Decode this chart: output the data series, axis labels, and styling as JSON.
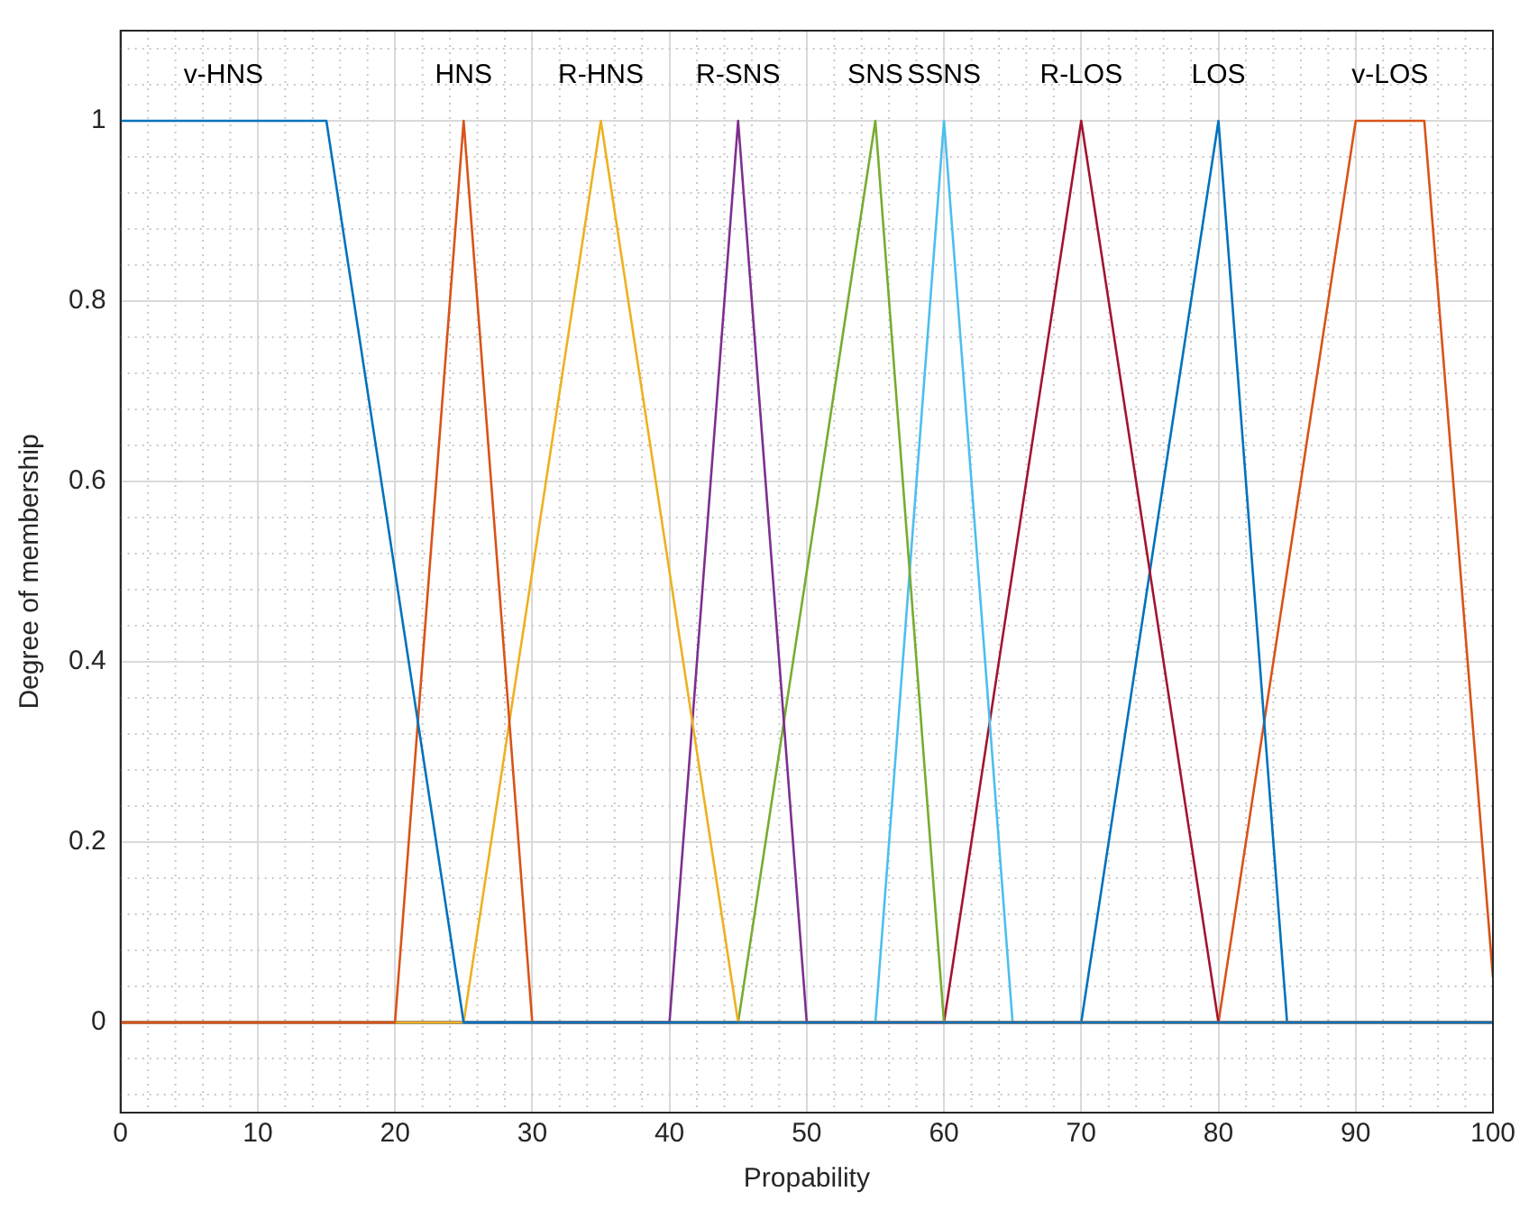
{
  "chart_data": {
    "type": "line",
    "xlabel": "Propability",
    "ylabel": "Degree of membership",
    "xlim": [
      0,
      100
    ],
    "ylim": [
      -0.1,
      1.1
    ],
    "xticks": [
      0,
      10,
      20,
      30,
      40,
      50,
      60,
      70,
      80,
      90,
      100
    ],
    "yticks": [
      0,
      0.2,
      0.4,
      0.6,
      0.8,
      1
    ],
    "grid": true,
    "legend": false,
    "marker": "none",
    "line_style": "solid",
    "series": [
      {
        "name": "v-HNS",
        "color": "#0072bd",
        "x": [
          0,
          15,
          25,
          100
        ],
        "values": [
          1,
          1,
          0,
          0
        ]
      },
      {
        "name": "HNS",
        "color": "#d95319",
        "x": [
          0,
          20,
          25,
          30,
          100
        ],
        "values": [
          0,
          0,
          1,
          0,
          0
        ]
      },
      {
        "name": "R-HNS",
        "color": "#edb120",
        "x": [
          0,
          25,
          35,
          45,
          100
        ],
        "values": [
          0,
          0,
          1,
          0,
          0
        ]
      },
      {
        "name": "R-SNS",
        "color": "#7e2f8e",
        "x": [
          0,
          40,
          45,
          50,
          100
        ],
        "values": [
          0,
          0,
          1,
          0,
          0
        ]
      },
      {
        "name": "SNS",
        "color": "#77ac30",
        "x": [
          0,
          45,
          55,
          60,
          100
        ],
        "values": [
          0,
          0,
          1,
          0,
          0
        ]
      },
      {
        "name": "SSNS",
        "color": "#4dbeee",
        "x": [
          0,
          55,
          60,
          65,
          100
        ],
        "values": [
          0,
          0,
          1,
          0,
          0
        ]
      },
      {
        "name": "R-LOS",
        "color": "#a2142f",
        "x": [
          0,
          60,
          70,
          80,
          100
        ],
        "values": [
          0,
          0,
          1,
          0,
          0
        ]
      },
      {
        "name": "LOS",
        "color": "#0072bd",
        "x": [
          0,
          70,
          80,
          85,
          100
        ],
        "values": [
          0,
          0,
          1,
          0,
          0
        ]
      },
      {
        "name": "v-LOS",
        "color": "#d95319",
        "x": [
          0,
          80,
          90,
          95,
          100
        ],
        "values": [
          0,
          0,
          1,
          1,
          0.05
        ]
      }
    ]
  }
}
